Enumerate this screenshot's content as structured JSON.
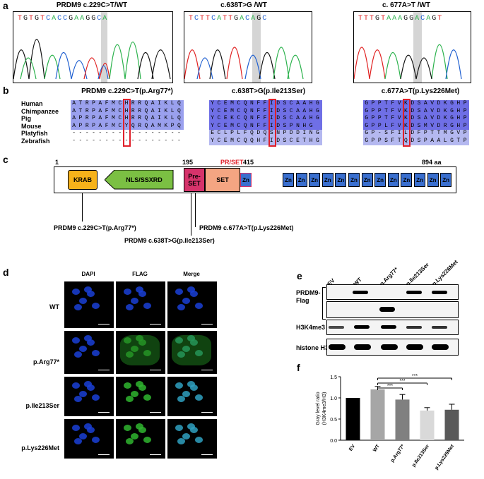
{
  "panels": {
    "a": "a",
    "b": "b",
    "c": "c",
    "d": "d",
    "e": "e",
    "f": "f"
  },
  "a": {
    "titles": [
      "PRDM9 c.229C>T/WT",
      "c.638T>G /WT",
      "c. 677A>T /WT"
    ],
    "seqs": [
      [
        "T",
        "G",
        "T",
        "G",
        "T",
        "C",
        "A",
        "C",
        "C",
        "G",
        "A",
        "A",
        "G",
        "G",
        "C",
        "A"
      ],
      [
        "T",
        "C",
        "T",
        "T",
        "C",
        "A",
        "T",
        "T",
        "G",
        "A",
        "C",
        "A",
        "G",
        "C"
      ],
      [
        "T",
        "T",
        "T",
        "G",
        "T",
        "A",
        "A",
        "A",
        "G",
        "G",
        "A",
        "C",
        "A",
        "G",
        "T"
      ]
    ]
  },
  "b": {
    "titles": [
      "PRDM9 c.229C>T(p.Arg77*)",
      "c.638T>G(p.Ile213Ser)",
      "c.677A>T(p.Lys226Met)"
    ],
    "species": [
      "Human",
      "Chimpanzee",
      "Pig",
      "Mouse",
      "Platyfish",
      "Zebrafish"
    ],
    "aln1": [
      "ATRPAFMCHRRQAIKLQ",
      "ATRPAFMCHRRQAIKLQ",
      "APRPAFMCHRRQAIKLQ",
      "APRPAFMCYQRQAMKPQ",
      "-----------------",
      "-----------------"
    ],
    "aln2": [
      "YCEMCQNFFIDSCAAHG",
      "YCEMCQNFFIDSCAAHG",
      "YCEKCQNFFIDSCAAHG",
      "YCEMCQNFFIDSPNHG",
      "ECLPLFQDQSNPDDING",
      "YCEMCQQHFIDSCETHG"
    ],
    "aln3": [
      "GPPTFVKDSAVDKGHP",
      "GPPTFVKDSAVDKGHP",
      "GPPTFVKDSAVDKGHP",
      "GPPLFVKDSMVDRGHP",
      "GP-SFILDFPTTMGVP",
      "GPPSFTQDSPAALGTP"
    ]
  },
  "c": {
    "num1": "1",
    "num195": "195",
    "num415": "415",
    "num894": "894 aa",
    "prset": "PR/SET",
    "krab": "KRAB",
    "nls": "NLS/SSXRD",
    "preset": "Pre-\nSET",
    "set": "SET",
    "zn": "Zn",
    "mut1": "PRDM9 c.229C>T(p.Arg77*)",
    "mut2": "PRDM9 c.638T>G(p.Ile213Ser)",
    "mut3": "PRDM9 c.677A>T(p.Lys226Met)",
    "colors": {
      "krab": "#f6b21a",
      "nls": "#7bc043",
      "preset": "#d6336b",
      "set": "#f4a582",
      "zn": "#3a6fcf"
    }
  },
  "d": {
    "cols": [
      "DAPI",
      "FLAG",
      "Merge"
    ],
    "rows": [
      "WT",
      "p.Arg77*",
      "p.Ile213Ser",
      "p.Lys226Met"
    ]
  },
  "e": {
    "lanes": [
      "EV",
      "WT",
      "p.Arg77*",
      "p.Ile213Ser",
      "p.Lys226Met"
    ],
    "rows": [
      "PRDM9-\nFlag",
      "H3K4me3",
      "histone H3"
    ]
  },
  "chart_data": {
    "type": "bar",
    "categories": [
      "EV",
      "WT",
      "p.Arg77*",
      "p.Ile213Ser",
      "p.Lys226Met"
    ],
    "values": [
      1.0,
      1.2,
      0.96,
      0.7,
      0.72
    ],
    "errors": [
      0,
      0.07,
      0.12,
      0.07,
      0.13
    ],
    "colors": [
      "#000000",
      "#a6a6a6",
      "#808080",
      "#d9d9d9",
      "#595959"
    ],
    "ylabel": "Gray level ratio\n(H3K4me3/H3)",
    "ylim": [
      0,
      1.5
    ],
    "yticks": [
      "0.0",
      "0.5",
      "1.0",
      "1.5"
    ],
    "sig": [
      "***",
      "***",
      "***"
    ]
  }
}
